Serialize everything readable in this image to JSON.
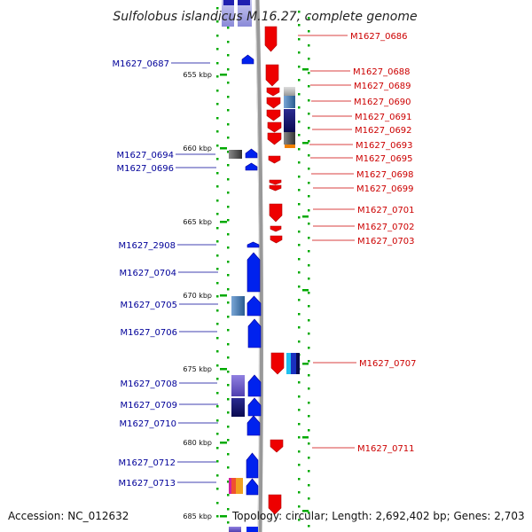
{
  "title": "Sulfolobus islandicus M.16.27, complete genome",
  "footer": {
    "accession": "Accession: NC_012632",
    "topology": "Topology: circular; Length: 2,692,402 bp; Genes: 2,703"
  },
  "colors": {
    "forward_gene": "#ee0000",
    "reverse_gene": "#0022ee",
    "ruler": "#00aa00",
    "axis": "#999999",
    "forward_label": "#cc0000",
    "reverse_label": "#000099"
  },
  "ticks": [
    {
      "label": "655 kbp"
    },
    {
      "label": "660 kbp"
    },
    {
      "label": "665 kbp"
    },
    {
      "label": "670 kbp"
    },
    {
      "label": "675 kbp"
    },
    {
      "label": "680 kbp"
    },
    {
      "label": "685 kbp"
    }
  ],
  "reverse_genes": [
    {
      "label": "M1627_0687"
    },
    {
      "label": "M1627_0694"
    },
    {
      "label": "M1627_0696"
    },
    {
      "label": "M1627_2908"
    },
    {
      "label": "M1627_0704"
    },
    {
      "label": "M1627_0705"
    },
    {
      "label": "M1627_0706"
    },
    {
      "label": "M1627_0708"
    },
    {
      "label": "M1627_0709"
    },
    {
      "label": "M1627_0710"
    },
    {
      "label": "M1627_0712"
    },
    {
      "label": "M1627_0713"
    }
  ],
  "forward_genes": [
    {
      "label": "M1627_0686"
    },
    {
      "label": "M1627_0688"
    },
    {
      "label": "M1627_0689"
    },
    {
      "label": "M1627_0690"
    },
    {
      "label": "M1627_0691"
    },
    {
      "label": "M1627_0692"
    },
    {
      "label": "M1627_0693"
    },
    {
      "label": "M1627_0695"
    },
    {
      "label": "M1627_0698"
    },
    {
      "label": "M1627_0699"
    },
    {
      "label": "M1627_0701"
    },
    {
      "label": "M1627_0702"
    },
    {
      "label": "M1627_0703"
    },
    {
      "label": "M1627_0707"
    },
    {
      "label": "M1627_0711"
    }
  ]
}
